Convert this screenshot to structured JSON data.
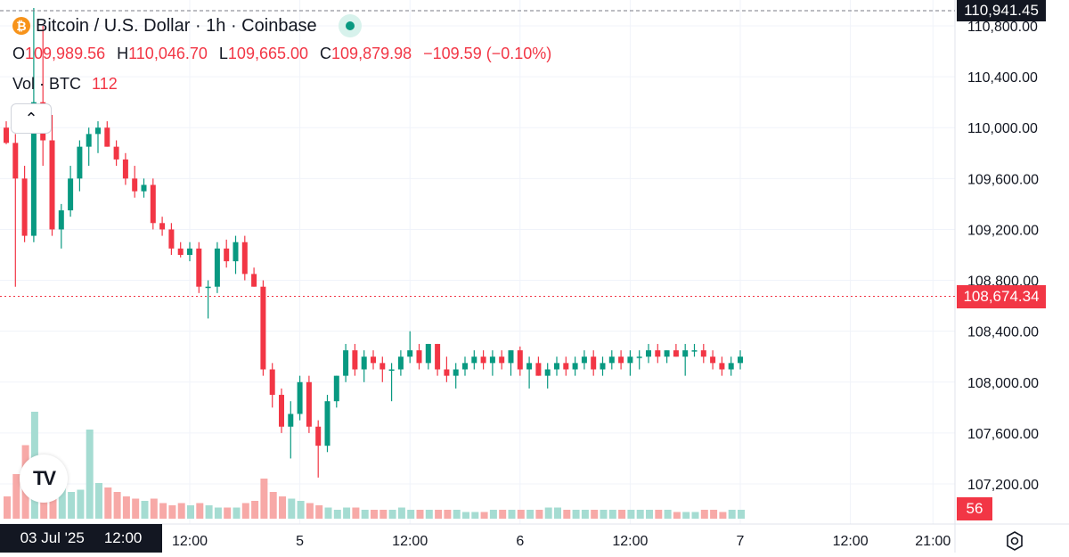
{
  "header": {
    "title": "Bitcoin / U.S. Dollar · 1h · Coinbase",
    "symbol_icon": "bitcoin-icon",
    "ohlc": {
      "o_label": "O",
      "o_value": "109,989.56",
      "h_label": "H",
      "h_value": "110,046.70",
      "l_label": "L",
      "l_value": "109,665.00",
      "c_label": "C",
      "c_value": "109,879.98",
      "change": "−109.59 (−0.10%)"
    },
    "volume": {
      "label": "Vol · BTC",
      "value": "112"
    }
  },
  "collapse_icon": "chevron-up-icon",
  "logo_text": "TV",
  "badges": {
    "top_price": "110,941.45",
    "last_price": "108,674.34",
    "volume": "56"
  },
  "cursor_label": {
    "date": "03 Jul '25",
    "time": "12:00"
  },
  "colors": {
    "up": "#089981",
    "down": "#f23645",
    "up_vol": "#a5dcd2",
    "down_vol": "#f7a9a7"
  },
  "chart_data": {
    "type": "candlestick",
    "title": "Bitcoin / U.S. Dollar · 1h · Coinbase",
    "ylim": [
      107000,
      111200
    ],
    "y_ticks": [
      "107,200.00",
      "107,600.00",
      "108,000.00",
      "108,400.00",
      "108,800.00",
      "109,200.00",
      "109,600.00",
      "110,000.00",
      "110,400.00",
      "110,800.00"
    ],
    "y_tick_values": [
      107200,
      107600,
      108000,
      108400,
      108800,
      109200,
      109600,
      110000,
      110400,
      110800
    ],
    "x_ticks": [
      {
        "label": "12:00",
        "index": 20
      },
      {
        "label": "5",
        "index": 32
      },
      {
        "label": "12:00",
        "index": 44
      },
      {
        "label": "6",
        "index": 56
      },
      {
        "label": "12:00",
        "index": 68
      },
      {
        "label": "7",
        "index": 80
      },
      {
        "label": "12:00",
        "index": 92
      },
      {
        "label": "21:00",
        "index": 101
      }
    ],
    "last_price": 108674.34,
    "volume_max": 60,
    "candles": [
      {
        "o": 110000,
        "h": 110050,
        "l": 109870,
        "c": 109880,
        "v": 10
      },
      {
        "o": 109880,
        "h": 109950,
        "l": 108750,
        "c": 109600,
        "v": 20
      },
      {
        "o": 109600,
        "h": 109700,
        "l": 109100,
        "c": 109150,
        "v": 33
      },
      {
        "o": 109150,
        "h": 110940,
        "l": 109100,
        "c": 110200,
        "v": 48
      },
      {
        "o": 110200,
        "h": 110800,
        "l": 109700,
        "c": 109900,
        "v": 25
      },
      {
        "o": 109900,
        "h": 110100,
        "l": 109150,
        "c": 109200,
        "v": 18
      },
      {
        "o": 109200,
        "h": 109400,
        "l": 109050,
        "c": 109350,
        "v": 14
      },
      {
        "o": 109350,
        "h": 109700,
        "l": 109300,
        "c": 109600,
        "v": 12
      },
      {
        "o": 109600,
        "h": 109900,
        "l": 109500,
        "c": 109850,
        "v": 13
      },
      {
        "o": 109850,
        "h": 110000,
        "l": 109700,
        "c": 109950,
        "v": 40
      },
      {
        "o": 109950,
        "h": 110050,
        "l": 109800,
        "c": 110000,
        "v": 16
      },
      {
        "o": 110000,
        "h": 110050,
        "l": 109850,
        "c": 109850,
        "v": 14
      },
      {
        "o": 109850,
        "h": 109900,
        "l": 109700,
        "c": 109750,
        "v": 12
      },
      {
        "o": 109750,
        "h": 109800,
        "l": 109550,
        "c": 109600,
        "v": 10
      },
      {
        "o": 109600,
        "h": 109700,
        "l": 109450,
        "c": 109500,
        "v": 9
      },
      {
        "o": 109500,
        "h": 109600,
        "l": 109450,
        "c": 109550,
        "v": 8
      },
      {
        "o": 109550,
        "h": 109600,
        "l": 109200,
        "c": 109250,
        "v": 9
      },
      {
        "o": 109250,
        "h": 109300,
        "l": 109150,
        "c": 109200,
        "v": 7
      },
      {
        "o": 109200,
        "h": 109250,
        "l": 109000,
        "c": 109050,
        "v": 6
      },
      {
        "o": 109050,
        "h": 109100,
        "l": 108980,
        "c": 109000,
        "v": 7
      },
      {
        "o": 109000,
        "h": 109100,
        "l": 108950,
        "c": 109050,
        "v": 6
      },
      {
        "o": 109050,
        "h": 109100,
        "l": 108700,
        "c": 108750,
        "v": 7
      },
      {
        "o": 108750,
        "h": 108800,
        "l": 108500,
        "c": 108750,
        "v": 6
      },
      {
        "o": 108750,
        "h": 109100,
        "l": 108700,
        "c": 109050,
        "v": 5
      },
      {
        "o": 109050,
        "h": 109120,
        "l": 108900,
        "c": 108950,
        "v": 5
      },
      {
        "o": 108950,
        "h": 109150,
        "l": 108850,
        "c": 109100,
        "v": 5
      },
      {
        "o": 109100,
        "h": 109150,
        "l": 108800,
        "c": 108850,
        "v": 7
      },
      {
        "o": 108850,
        "h": 108900,
        "l": 108750,
        "c": 108750,
        "v": 8
      },
      {
        "o": 108750,
        "h": 108800,
        "l": 108050,
        "c": 108100,
        "v": 18
      },
      {
        "o": 108100,
        "h": 108150,
        "l": 107800,
        "c": 107900,
        "v": 12
      },
      {
        "o": 107900,
        "h": 107950,
        "l": 107600,
        "c": 107650,
        "v": 10
      },
      {
        "o": 107650,
        "h": 107850,
        "l": 107400,
        "c": 107750,
        "v": 9
      },
      {
        "o": 107750,
        "h": 108050,
        "l": 107700,
        "c": 108000,
        "v": 8
      },
      {
        "o": 108000,
        "h": 108050,
        "l": 107600,
        "c": 107650,
        "v": 7
      },
      {
        "o": 107650,
        "h": 107700,
        "l": 107250,
        "c": 107500,
        "v": 6
      },
      {
        "o": 107500,
        "h": 107900,
        "l": 107450,
        "c": 107850,
        "v": 5
      },
      {
        "o": 107850,
        "h": 108050,
        "l": 107800,
        "c": 108050,
        "v": 4
      },
      {
        "o": 108050,
        "h": 108300,
        "l": 108000,
        "c": 108250,
        "v": 5
      },
      {
        "o": 108250,
        "h": 108300,
        "l": 108050,
        "c": 108100,
        "v": 5
      },
      {
        "o": 108100,
        "h": 108250,
        "l": 108000,
        "c": 108200,
        "v": 4
      },
      {
        "o": 108200,
        "h": 108250,
        "l": 108100,
        "c": 108150,
        "v": 4
      },
      {
        "o": 108150,
        "h": 108200,
        "l": 108000,
        "c": 108100,
        "v": 4
      },
      {
        "o": 108100,
        "h": 108150,
        "l": 107850,
        "c": 108100,
        "v": 4
      },
      {
        "o": 108100,
        "h": 108250,
        "l": 108050,
        "c": 108200,
        "v": 5
      },
      {
        "o": 108200,
        "h": 108400,
        "l": 108150,
        "c": 108250,
        "v": 4
      },
      {
        "o": 108250,
        "h": 108300,
        "l": 108100,
        "c": 108150,
        "v": 4
      },
      {
        "o": 108150,
        "h": 108300,
        "l": 108100,
        "c": 108300,
        "v": 4
      },
      {
        "o": 108300,
        "h": 108300,
        "l": 108050,
        "c": 108100,
        "v": 4
      },
      {
        "o": 108100,
        "h": 108200,
        "l": 108000,
        "c": 108050,
        "v": 4
      },
      {
        "o": 108050,
        "h": 108150,
        "l": 107950,
        "c": 108100,
        "v": 4
      },
      {
        "o": 108100,
        "h": 108200,
        "l": 108050,
        "c": 108150,
        "v": 3
      },
      {
        "o": 108150,
        "h": 108250,
        "l": 108100,
        "c": 108200,
        "v": 3
      },
      {
        "o": 108200,
        "h": 108250,
        "l": 108100,
        "c": 108150,
        "v": 3
      },
      {
        "o": 108150,
        "h": 108250,
        "l": 108050,
        "c": 108200,
        "v": 4
      },
      {
        "o": 108200,
        "h": 108250,
        "l": 108100,
        "c": 108150,
        "v": 4
      },
      {
        "o": 108150,
        "h": 108250,
        "l": 108050,
        "c": 108250,
        "v": 4
      },
      {
        "o": 108250,
        "h": 108280,
        "l": 108050,
        "c": 108100,
        "v": 4
      },
      {
        "o": 108100,
        "h": 108200,
        "l": 107950,
        "c": 108150,
        "v": 4
      },
      {
        "o": 108150,
        "h": 108200,
        "l": 108050,
        "c": 108050,
        "v": 4
      },
      {
        "o": 108050,
        "h": 108150,
        "l": 107950,
        "c": 108100,
        "v": 5
      },
      {
        "o": 108100,
        "h": 108200,
        "l": 108050,
        "c": 108150,
        "v": 5
      },
      {
        "o": 108150,
        "h": 108200,
        "l": 108050,
        "c": 108100,
        "v": 4
      },
      {
        "o": 108100,
        "h": 108200,
        "l": 108050,
        "c": 108150,
        "v": 4
      },
      {
        "o": 108150,
        "h": 108250,
        "l": 108100,
        "c": 108200,
        "v": 4
      },
      {
        "o": 108200,
        "h": 108250,
        "l": 108050,
        "c": 108100,
        "v": 4
      },
      {
        "o": 108100,
        "h": 108200,
        "l": 108050,
        "c": 108150,
        "v": 4
      },
      {
        "o": 108150,
        "h": 108250,
        "l": 108100,
        "c": 108200,
        "v": 4
      },
      {
        "o": 108200,
        "h": 108250,
        "l": 108100,
        "c": 108150,
        "v": 4
      },
      {
        "o": 108150,
        "h": 108250,
        "l": 108050,
        "c": 108200,
        "v": 4
      },
      {
        "o": 108200,
        "h": 108250,
        "l": 108100,
        "c": 108200,
        "v": 4
      },
      {
        "o": 108200,
        "h": 108300,
        "l": 108150,
        "c": 108250,
        "v": 4
      },
      {
        "o": 108250,
        "h": 108300,
        "l": 108150,
        "c": 108200,
        "v": 4
      },
      {
        "o": 108200,
        "h": 108250,
        "l": 108150,
        "c": 108250,
        "v": 4
      },
      {
        "o": 108250,
        "h": 108300,
        "l": 108200,
        "c": 108200,
        "v": 3
      },
      {
        "o": 108200,
        "h": 108300,
        "l": 108050,
        "c": 108250,
        "v": 3
      },
      {
        "o": 108250,
        "h": 108300,
        "l": 108200,
        "c": 108250,
        "v": 3
      },
      {
        "o": 108250,
        "h": 108300,
        "l": 108150,
        "c": 108200,
        "v": 4
      },
      {
        "o": 108200,
        "h": 108250,
        "l": 108100,
        "c": 108150,
        "v": 4
      },
      {
        "o": 108150,
        "h": 108200,
        "l": 108050,
        "c": 108100,
        "v": 3
      },
      {
        "o": 108100,
        "h": 108200,
        "l": 108050,
        "c": 108150,
        "v": 4
      },
      {
        "o": 108150,
        "h": 108250,
        "l": 108100,
        "c": 108200,
        "v": 4
      }
    ]
  }
}
